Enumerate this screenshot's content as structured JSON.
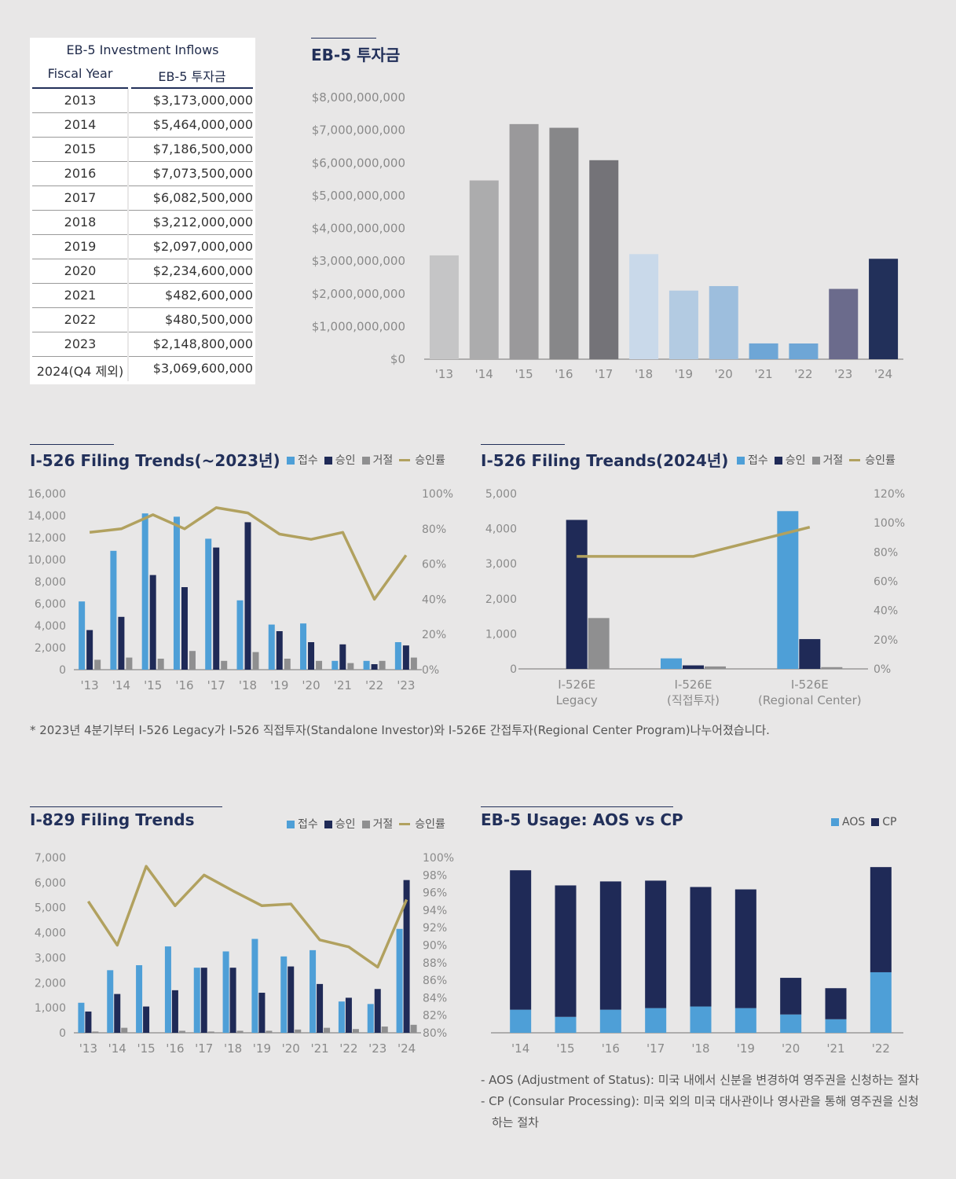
{
  "table": {
    "caption": "EB-5 Investment Inflows",
    "col_year": "Fiscal Year",
    "col_amount": "EB-5 투자금",
    "rows": [
      {
        "year": "2013",
        "amount": "$3,173,000,000"
      },
      {
        "year": "2014",
        "amount": "$5,464,000,000"
      },
      {
        "year": "2015",
        "amount": "$7,186,500,000"
      },
      {
        "year": "2016",
        "amount": "$7,073,500,000"
      },
      {
        "year": "2017",
        "amount": "$6,082,500,000"
      },
      {
        "year": "2018",
        "amount": "$3,212,000,000"
      },
      {
        "year": "2019",
        "amount": "$2,097,000,000"
      },
      {
        "year": "2020",
        "amount": "$2,234,600,000"
      },
      {
        "year": "2021",
        "amount": "$482,600,000"
      },
      {
        "year": "2022",
        "amount": "$480,500,000"
      },
      {
        "year": "2023",
        "amount": "$2,148,800,000"
      },
      {
        "year": "2024(Q4 제외)",
        "amount": "$3,069,600,000"
      }
    ]
  },
  "legend": {
    "receipts": "접수",
    "approvals": "승인",
    "denials": "거절",
    "approval_rate": "승인률",
    "aos": "AOS",
    "cp": "CP"
  },
  "colors": {
    "receipts": "#4e9fd7",
    "approvals": "#1f2a57",
    "denials": "#8f8f90",
    "rate": "#b1a15f",
    "aos": "#4e9fd7",
    "cp": "#1f2a57"
  },
  "footnote": "* 2023년 4분기부터 I-526 Legacy가 I-526 직접투자(Standalone Investor)와 I-526E 간접투자(Regional Center Program)나누어졌습니다.",
  "aos_note": "- AOS (Adjustment of Status): 미국 내에서 신분을 변경하여 영주권을 신청하는 절차",
  "cp_note_line1": "- CP (Consular Processing): 미국 외의 미국 대사관이나 영사관을 통해 영주권을 신청",
  "cp_note_line2": "하는 절차",
  "chart_data": [
    {
      "id": "eb5",
      "type": "bar",
      "title": "EB-5 투자금",
      "categories": [
        "'13",
        "'14",
        "'15",
        "'16",
        "'17",
        "'18",
        "'19",
        "'20",
        "'21",
        "'22",
        "'23",
        "'24"
      ],
      "values": [
        3173000000,
        5464000000,
        7186500000,
        7073500000,
        6082500000,
        3212000000,
        2097000000,
        2234600000,
        482600000,
        480500000,
        2148800000,
        3069600000
      ],
      "bar_colors": [
        "#c5c5c6",
        "#acacad",
        "#9a999b",
        "#878789",
        "#747378",
        "#c9d9ea",
        "#b3cbe2",
        "#9dbedd",
        "#6ea6d6",
        "#6ea6d6",
        "#6b6b8c",
        "#22305a"
      ],
      "ylim": [
        0,
        8000000000
      ],
      "yticks": [
        "$0",
        "$1,000,000,000",
        "$2,000,000,000",
        "$3,000,000,000",
        "$4,000,000,000",
        "$5,000,000,000",
        "$6,000,000,000",
        "$7,000,000,000",
        "$8,000,000,000"
      ]
    },
    {
      "id": "i526",
      "type": "bar",
      "title": "I-526 Filing Trends(~2023년)",
      "categories": [
        "'13",
        "'14",
        "'15",
        "'16",
        "'17",
        "'18",
        "'19",
        "'20",
        "'21",
        "'22",
        "'23"
      ],
      "series": [
        {
          "name": "접수",
          "values": [
            6200,
            10800,
            14200,
            13900,
            11900,
            6300,
            4100,
            4200,
            800,
            800,
            2500
          ]
        },
        {
          "name": "승인",
          "values": [
            3600,
            4800,
            8600,
            7500,
            11100,
            13400,
            3500,
            2500,
            2300,
            500,
            2200
          ]
        },
        {
          "name": "거절",
          "values": [
            900,
            1100,
            1000,
            1700,
            800,
            1600,
            1000,
            800,
            600,
            800,
            1100
          ]
        }
      ],
      "rate": {
        "name": "승인률",
        "values": [
          78,
          80,
          88,
          80,
          92,
          89,
          77,
          74,
          78,
          40,
          65
        ]
      },
      "ylim": [
        0,
        16000
      ],
      "y2lim": [
        0,
        100
      ],
      "yticks": [
        "0",
        "2,000",
        "4,000",
        "6,000",
        "8,000",
        "10,000",
        "12,000",
        "14,000",
        "16,000"
      ],
      "y2ticks": [
        "0%",
        "20%",
        "40%",
        "60%",
        "80%",
        "100%"
      ]
    },
    {
      "id": "i526_2024",
      "type": "bar",
      "title": "I-526 Filing Treands(2024년)",
      "categories": [
        [
          "I-526E",
          "Legacy"
        ],
        [
          "I-526E",
          "(직접투자)"
        ],
        [
          "I-526E",
          "(Regional Center)"
        ]
      ],
      "series": [
        {
          "name": "접수",
          "values": [
            0,
            300,
            4500
          ]
        },
        {
          "name": "승인",
          "values": [
            4250,
            100,
            850
          ]
        },
        {
          "name": "거절",
          "values": [
            1450,
            70,
            50
          ]
        }
      ],
      "rate": {
        "name": "승인률",
        "values": [
          77,
          77,
          97
        ]
      },
      "ylim": [
        0,
        5000
      ],
      "y2lim": [
        0,
        120
      ],
      "yticks": [
        "0",
        "1,000",
        "2,000",
        "3,000",
        "4,000",
        "5,000"
      ],
      "y2ticks": [
        "0%",
        "20%",
        "40%",
        "60%",
        "80%",
        "100%",
        "120%"
      ]
    },
    {
      "id": "i829",
      "type": "bar",
      "title": "I-829 Filing Trends",
      "categories": [
        "'13",
        "'14",
        "'15",
        "'16",
        "'17",
        "'18",
        "'19",
        "'20",
        "'21",
        "'22",
        "'23",
        "'24"
      ],
      "series": [
        {
          "name": "접수",
          "values": [
            1200,
            2500,
            2700,
            3450,
            2600,
            3250,
            3750,
            3050,
            3300,
            1250,
            1150,
            4150
          ]
        },
        {
          "name": "승인",
          "values": [
            850,
            1550,
            1050,
            1700,
            2600,
            2600,
            1600,
            2650,
            1950,
            1400,
            1750,
            6100
          ]
        },
        {
          "name": "거절",
          "values": [
            50,
            200,
            0,
            80,
            50,
            80,
            80,
            130,
            200,
            150,
            250,
            320
          ]
        }
      ],
      "rate": {
        "name": "승인률",
        "values": [
          95,
          90,
          99,
          94.5,
          98,
          96.2,
          94.5,
          94.7,
          90.6,
          89.8,
          87.5,
          95.2
        ]
      },
      "ylim": [
        0,
        7000
      ],
      "y2lim": [
        80,
        100
      ],
      "yticks": [
        "0",
        "1,000",
        "2,000",
        "3,000",
        "4,000",
        "5,000",
        "6,000",
        "7,000"
      ],
      "y2ticks": [
        "80%",
        "82%",
        "84%",
        "86%",
        "88%",
        "90%",
        "92%",
        "94%",
        "96%",
        "98%",
        "100%"
      ]
    },
    {
      "id": "aoscp",
      "type": "bar",
      "title": "EB-5 Usage: AOS vs CP",
      "categories": [
        "'14",
        "'15",
        "'16",
        "'17",
        "'18",
        "'19",
        "'20",
        "'21",
        "'22"
      ],
      "series": [
        {
          "name": "AOS",
          "values": [
            29,
            20,
            29,
            31,
            33,
            31,
            23,
            17,
            76
          ]
        },
        {
          "name": "CP",
          "values": [
            175,
            165,
            161,
            160,
            150,
            149,
            46,
            39,
            132
          ]
        }
      ],
      "ylim": [
        0,
        220
      ]
    }
  ]
}
